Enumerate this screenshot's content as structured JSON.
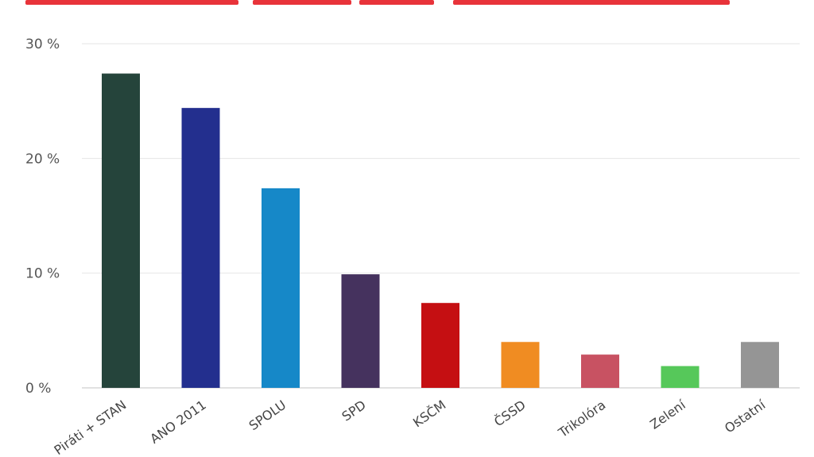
{
  "chart_data": {
    "type": "bar",
    "categories": [
      "Piráti + STAN",
      "ANO 2011",
      "SPOLU",
      "SPD",
      "KSČM",
      "ČSSD",
      "Trikolóra",
      "Zelení",
      "Ostatní"
    ],
    "values": [
      27.4,
      24.4,
      17.4,
      9.9,
      7.4,
      4.0,
      2.9,
      1.9,
      4.0
    ],
    "colors": [
      "#25443b",
      "#232f8e",
      "#1688c8",
      "#45325e",
      "#c50f12",
      "#f08c22",
      "#c85262",
      "#56c85a",
      "#959595"
    ],
    "y_ticks": [
      "0 %",
      "10 %",
      "20 %",
      "30 %"
    ],
    "y_tick_values": [
      0,
      10,
      20,
      30
    ],
    "ylim": [
      0,
      30
    ],
    "grid": true,
    "title": "",
    "xlabel": "",
    "ylabel": "",
    "accent_color": "#e8333a"
  }
}
